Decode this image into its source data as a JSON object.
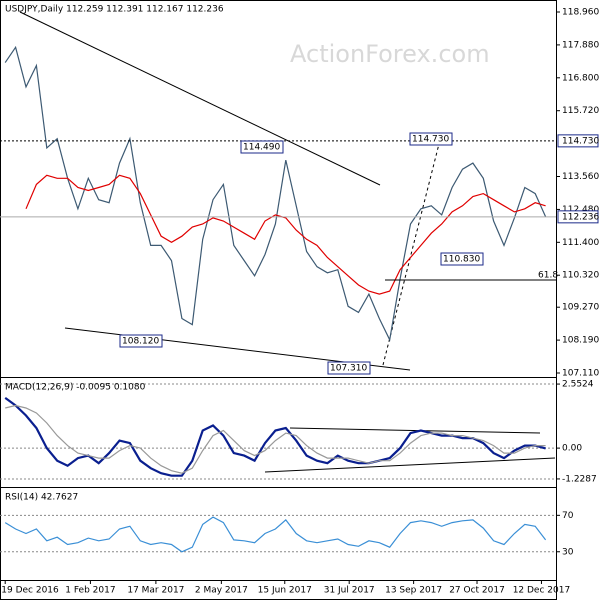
{
  "chart_data": [
    {
      "type": "line",
      "title": "USDJPY,Daily  112.259 112.391 112.167 112.236",
      "watermark": "ActionForex.com",
      "xlim": [
        -0.5,
        53
      ],
      "ylim": [
        106.979,
        119.354
      ],
      "yticks": [
        {
          "value": 118.96,
          "label": "118.960"
        },
        {
          "value": 117.88,
          "label": "117.880"
        },
        {
          "value": 116.8,
          "label": "116.800"
        },
        {
          "value": 115.72,
          "label": "115.720"
        },
        {
          "value": 113.56,
          "label": "113.560"
        },
        {
          "value": 112.48,
          "label": "112.480"
        },
        {
          "value": 111.4,
          "label": "111.400"
        },
        {
          "value": 110.32,
          "label": "110.320"
        },
        {
          "value": 109.27,
          "label": "109.270"
        },
        {
          "value": 108.19,
          "label": "108.190"
        },
        {
          "value": 107.11,
          "label": "107.110"
        }
      ],
      "series": [
        {
          "name": "USDJPY",
          "color": "#3d5a73",
          "values": [
            117.3,
            117.8,
            116.5,
            117.2,
            114.5,
            114.8,
            113.5,
            112.5,
            113.5,
            112.8,
            112.7,
            114.0,
            114.8,
            112.7,
            111.3,
            111.3,
            110.8,
            108.9,
            108.7,
            111.5,
            112.8,
            113.3,
            111.3,
            110.8,
            110.3,
            111.0,
            112.0,
            114.1,
            112.6,
            111.1,
            110.6,
            110.4,
            110.5,
            109.3,
            109.1,
            109.7,
            108.9,
            108.2,
            110.2,
            112.0,
            112.5,
            112.6,
            112.3,
            113.2,
            113.8,
            114.0,
            113.5,
            112.1,
            111.3,
            112.2,
            113.2,
            113.0,
            112.24
          ]
        },
        {
          "name": "MA",
          "color": "#e00000",
          "values": [
            null,
            null,
            112.5,
            113.3,
            113.6,
            113.5,
            113.5,
            113.2,
            113.1,
            113.2,
            113.3,
            113.6,
            113.5,
            113.0,
            112.3,
            111.6,
            111.4,
            111.6,
            111.9,
            112.0,
            112.2,
            112.1,
            111.9,
            111.7,
            111.5,
            112.1,
            112.3,
            112.2,
            111.8,
            111.5,
            111.3,
            110.9,
            110.6,
            110.3,
            110.0,
            109.8,
            109.7,
            109.8,
            110.5,
            110.9,
            111.3,
            111.7,
            112.0,
            112.4,
            112.6,
            112.9,
            113.0,
            112.8,
            112.6,
            112.4,
            112.5,
            112.7,
            112.6
          ]
        }
      ],
      "annotations": [
        "114.490",
        "108.120",
        "107.310",
        "110.830",
        "114.730",
        "61.8"
      ],
      "level_labels": [
        {
          "value": 114.73,
          "label": "114.730"
        },
        {
          "value": 112.236,
          "label": "112.236"
        }
      ]
    },
    {
      "type": "line",
      "title": "MACD(12,26,9) -0.0095 0.1080",
      "xlim": [
        -0.5,
        53
      ],
      "ylim": [
        -1.55,
        2.794
      ],
      "yticks": [
        2.5524,
        {
          "value": 0,
          "label": "0.00"
        },
        -1.2287
      ],
      "series": [
        {
          "name": "MACD",
          "color": "#0a1f8f",
          "values": [
            2.0,
            1.7,
            1.3,
            0.8,
            0.0,
            -0.5,
            -0.7,
            -0.4,
            -0.3,
            -0.6,
            -0.2,
            0.3,
            0.2,
            -0.5,
            -0.8,
            -1.0,
            -1.1,
            -1.1,
            -0.5,
            0.7,
            0.9,
            0.5,
            -0.2,
            -0.3,
            -0.5,
            0.2,
            0.7,
            0.8,
            0.3,
            -0.3,
            -0.5,
            -0.6,
            -0.3,
            -0.5,
            -0.6,
            -0.6,
            -0.5,
            -0.4,
            0.0,
            0.6,
            0.7,
            0.6,
            0.5,
            0.5,
            0.4,
            0.4,
            0.2,
            -0.2,
            -0.4,
            -0.1,
            0.1,
            0.1,
            -0.01
          ]
        },
        {
          "name": "Signal",
          "color": "#999999",
          "values": [
            1.6,
            1.7,
            1.6,
            1.4,
            1.0,
            0.5,
            0.1,
            -0.2,
            -0.3,
            -0.4,
            -0.4,
            -0.1,
            0.1,
            0.0,
            -0.4,
            -0.7,
            -0.9,
            -1.0,
            -0.8,
            -0.1,
            0.5,
            0.7,
            0.3,
            -0.1,
            -0.3,
            -0.1,
            0.3,
            0.6,
            0.5,
            0.1,
            -0.2,
            -0.4,
            -0.4,
            -0.4,
            -0.5,
            -0.6,
            -0.5,
            -0.5,
            -0.2,
            0.2,
            0.5,
            0.6,
            0.6,
            0.5,
            0.5,
            0.4,
            0.3,
            0.1,
            -0.2,
            -0.2,
            0.0,
            0.1,
            0.1
          ]
        }
      ]
    },
    {
      "type": "line",
      "title": "RSI(14) 42.7627",
      "xlim": [
        -0.5,
        53
      ],
      "ylim": [
        -1,
        100
      ],
      "yticks": [
        70,
        30
      ],
      "xticks": [
        {
          "value": 0,
          "label": "19 Dec 2016"
        },
        {
          "value": 8.2,
          "label": "1 Feb 2017"
        },
        {
          "value": 14.5,
          "label": "17 Mar 2017"
        },
        {
          "value": 20.8,
          "label": "2 May 2017"
        },
        {
          "value": 26.9,
          "label": "15 Jun 2017"
        },
        {
          "value": 33.1,
          "label": "31 Jul 2017"
        },
        {
          "value": 39.3,
          "label": "13 Sep 2017"
        },
        {
          "value": 45.4,
          "label": "27 Oct 2017"
        },
        {
          "value": 51.6,
          "label": "12 Dec 2017"
        }
      ],
      "series": [
        {
          "name": "RSI",
          "color": "#3a8fd6",
          "values": [
            62,
            55,
            50,
            55,
            42,
            46,
            38,
            40,
            45,
            42,
            44,
            55,
            58,
            42,
            38,
            40,
            38,
            30,
            35,
            60,
            68,
            62,
            43,
            42,
            40,
            50,
            55,
            65,
            50,
            42,
            40,
            42,
            44,
            38,
            36,
            42,
            40,
            35,
            50,
            62,
            64,
            62,
            58,
            62,
            64,
            65,
            56,
            42,
            38,
            50,
            60,
            58,
            43
          ]
        }
      ]
    }
  ]
}
